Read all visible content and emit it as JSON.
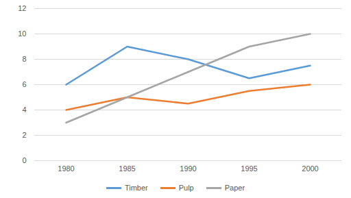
{
  "chart_data": {
    "type": "line",
    "categories": [
      "1980",
      "1985",
      "1990",
      "1995",
      "2000"
    ],
    "series": [
      {
        "name": "Timber",
        "color": "#5b9bd5",
        "values": [
          6,
          9,
          8,
          6.5,
          7.5
        ]
      },
      {
        "name": "Pulp",
        "color": "#ed7d31",
        "values": [
          4,
          5,
          4.5,
          5.5,
          6
        ]
      },
      {
        "name": "Paper",
        "color": "#a5a5a5",
        "values": [
          3,
          5,
          7,
          9,
          10
        ]
      }
    ],
    "ylim": [
      0,
      12
    ],
    "yticks": [
      0,
      2,
      4,
      6,
      8,
      10,
      12
    ],
    "grid": true,
    "legend": "bottom"
  }
}
